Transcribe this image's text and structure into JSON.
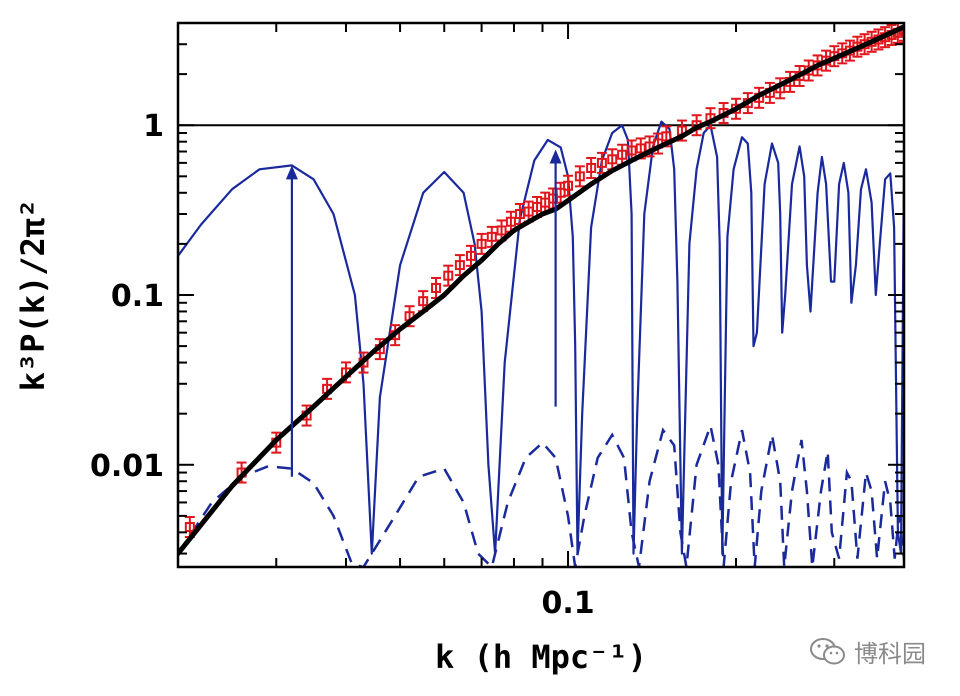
{
  "chart_data": {
    "type": "line",
    "title": "",
    "xlabel": "k (h Mpc⁻¹)",
    "ylabel": "k³P(k)/2π²",
    "xscale": "log",
    "yscale": "log",
    "xlim": [
      0.02,
      0.4
    ],
    "ylim": [
      0.0025,
      4.0
    ],
    "x_tick_labels": [
      {
        "value": 0.1,
        "label": "0.1"
      }
    ],
    "y_tick_labels": [
      {
        "value": 0.01,
        "label": "0.01"
      },
      {
        "value": 0.1,
        "label": "0.1"
      },
      {
        "value": 1,
        "label": "1"
      }
    ],
    "reference_line": {
      "y": 1,
      "color": "#000000"
    },
    "colors": {
      "model": "#000000",
      "data": "#e0161c",
      "bao_solid": "#1a2a9c",
      "bao_dashed": "#1a2a9c",
      "arrows": "#1a2a9c"
    },
    "series": [
      {
        "key": "model",
        "style": "solid-thick",
        "x": [
          0.02,
          0.025,
          0.03,
          0.035,
          0.04,
          0.045,
          0.05,
          0.055,
          0.06,
          0.065,
          0.07,
          0.075,
          0.08,
          0.085,
          0.09,
          0.095,
          0.1,
          0.11,
          0.12,
          0.13,
          0.14,
          0.15,
          0.16,
          0.17,
          0.18,
          0.2,
          0.22,
          0.25,
          0.28,
          0.31,
          0.35,
          0.4
        ],
        "y": [
          0.003,
          0.0075,
          0.014,
          0.022,
          0.033,
          0.047,
          0.063,
          0.08,
          0.1,
          0.13,
          0.16,
          0.2,
          0.24,
          0.27,
          0.3,
          0.32,
          0.36,
          0.45,
          0.54,
          0.62,
          0.7,
          0.78,
          0.86,
          0.97,
          1.05,
          1.25,
          1.5,
          1.85,
          2.25,
          2.6,
          3.1,
          3.8
        ]
      },
      {
        "key": "data",
        "style": "square-markers",
        "x": [
          0.021,
          0.026,
          0.03,
          0.034,
          0.037,
          0.04,
          0.043,
          0.046,
          0.049,
          0.052,
          0.055,
          0.058,
          0.061,
          0.064,
          0.067,
          0.07,
          0.073,
          0.076,
          0.079,
          0.082,
          0.085,
          0.088,
          0.091,
          0.094,
          0.097,
          0.1,
          0.105,
          0.11,
          0.115,
          0.12,
          0.125,
          0.13,
          0.135,
          0.14,
          0.145,
          0.15,
          0.16,
          0.17,
          0.18,
          0.19,
          0.2,
          0.21,
          0.22,
          0.23,
          0.24,
          0.25,
          0.26,
          0.27,
          0.28,
          0.29,
          0.3,
          0.31,
          0.32,
          0.33,
          0.34,
          0.35,
          0.36,
          0.37,
          0.38,
          0.39,
          0.4
        ],
        "y": [
          0.0043,
          0.009,
          0.0135,
          0.0195,
          0.028,
          0.035,
          0.04,
          0.048,
          0.058,
          0.075,
          0.092,
          0.11,
          0.13,
          0.15,
          0.17,
          0.2,
          0.22,
          0.24,
          0.27,
          0.3,
          0.31,
          0.33,
          0.35,
          0.37,
          0.4,
          0.44,
          0.5,
          0.56,
          0.6,
          0.63,
          0.67,
          0.71,
          0.73,
          0.75,
          0.78,
          0.86,
          0.93,
          1.0,
          1.1,
          1.18,
          1.25,
          1.35,
          1.45,
          1.55,
          1.65,
          1.8,
          1.95,
          2.1,
          2.25,
          2.4,
          2.55,
          2.65,
          2.75,
          2.9,
          3.0,
          3.1,
          3.2,
          3.3,
          3.4,
          3.5,
          3.6
        ]
      },
      {
        "key": "bao_solid",
        "style": "oscillating-solid",
        "x": [
          0.02,
          0.022,
          0.025,
          0.028,
          0.032,
          0.035,
          0.038,
          0.0415,
          0.043,
          0.0445,
          0.046,
          0.05,
          0.055,
          0.06,
          0.065,
          0.068,
          0.07,
          0.072,
          0.074,
          0.077,
          0.082,
          0.087,
          0.092,
          0.097,
          0.1,
          0.102,
          0.103,
          0.104,
          0.106,
          0.11,
          0.115,
          0.12,
          0.125,
          0.128,
          0.13,
          0.131,
          0.133,
          0.137,
          0.142,
          0.147,
          0.152,
          0.155,
          0.157,
          0.16,
          0.165,
          0.17,
          0.175,
          0.18,
          0.185,
          0.187,
          0.189,
          0.193,
          0.198,
          0.205,
          0.21,
          0.213,
          0.215,
          0.218,
          0.225,
          0.232,
          0.238,
          0.24,
          0.242,
          0.245,
          0.252,
          0.26,
          0.265,
          0.268,
          0.272,
          0.28,
          0.285,
          0.29,
          0.296,
          0.3,
          0.306,
          0.312,
          0.318,
          0.322,
          0.328,
          0.335,
          0.342,
          0.35,
          0.356,
          0.362,
          0.37,
          0.378,
          0.384,
          0.39,
          0.395,
          0.4
        ],
        "y": [
          0.17,
          0.26,
          0.42,
          0.55,
          0.58,
          0.48,
          0.3,
          0.1,
          0.03,
          0.003,
          0.025,
          0.15,
          0.4,
          0.53,
          0.4,
          0.2,
          0.08,
          0.01,
          0.003,
          0.04,
          0.28,
          0.62,
          0.82,
          0.74,
          0.5,
          0.22,
          0.05,
          0.003,
          0.02,
          0.25,
          0.62,
          0.9,
          1.0,
          0.82,
          0.3,
          0.003,
          0.02,
          0.3,
          0.75,
          1.05,
          0.95,
          0.55,
          0.12,
          0.003,
          0.2,
          0.55,
          0.9,
          1.0,
          0.65,
          0.2,
          0.003,
          0.22,
          0.55,
          0.85,
          0.78,
          0.4,
          0.05,
          0.06,
          0.45,
          0.78,
          0.6,
          0.3,
          0.06,
          0.1,
          0.45,
          0.75,
          0.5,
          0.15,
          0.08,
          0.4,
          0.65,
          0.45,
          0.12,
          0.12,
          0.45,
          0.6,
          0.4,
          0.09,
          0.15,
          0.42,
          0.55,
          0.35,
          0.1,
          0.2,
          0.48,
          0.52,
          0.25,
          0.004,
          0.003,
          0.6
        ]
      },
      {
        "key": "bao_dashed",
        "style": "oscillating-dashed",
        "x": [
          0.02,
          0.023,
          0.026,
          0.029,
          0.032,
          0.035,
          0.038,
          0.041,
          0.043,
          0.048,
          0.054,
          0.06,
          0.065,
          0.069,
          0.073,
          0.078,
          0.084,
          0.09,
          0.095,
          0.1,
          0.103,
          0.107,
          0.113,
          0.12,
          0.126,
          0.13,
          0.134,
          0.14,
          0.148,
          0.155,
          0.159,
          0.163,
          0.17,
          0.18,
          0.186,
          0.19,
          0.196,
          0.205,
          0.212,
          0.216,
          0.222,
          0.232,
          0.24,
          0.244,
          0.252,
          0.262,
          0.268,
          0.274,
          0.284,
          0.292,
          0.297,
          0.306,
          0.316,
          0.322,
          0.33,
          0.342,
          0.35,
          0.358,
          0.37,
          0.378,
          0.385,
          0.392,
          0.4
        ],
        "y": [
          0.003,
          0.006,
          0.0085,
          0.0098,
          0.0095,
          0.0078,
          0.005,
          0.0026,
          0.0025,
          0.0045,
          0.0085,
          0.0095,
          0.006,
          0.003,
          0.0025,
          0.006,
          0.011,
          0.0135,
          0.011,
          0.005,
          0.0025,
          0.005,
          0.011,
          0.015,
          0.011,
          0.004,
          0.0025,
          0.008,
          0.016,
          0.013,
          0.004,
          0.0025,
          0.01,
          0.017,
          0.01,
          0.0025,
          0.008,
          0.016,
          0.009,
          0.0025,
          0.007,
          0.015,
          0.008,
          0.0025,
          0.007,
          0.014,
          0.007,
          0.0025,
          0.007,
          0.012,
          0.004,
          0.0028,
          0.009,
          0.008,
          0.0028,
          0.009,
          0.007,
          0.0028,
          0.008,
          0.006,
          0.0028,
          0.005,
          0.0028
        ]
      }
    ],
    "arrows": [
      {
        "x": 0.032,
        "y_from": 0.0085,
        "y_to": 0.58
      },
      {
        "x": 0.095,
        "y_from": 0.022,
        "y_to": 0.72
      }
    ]
  },
  "watermark": {
    "text": "博科园",
    "icon": "wechat-icon"
  }
}
